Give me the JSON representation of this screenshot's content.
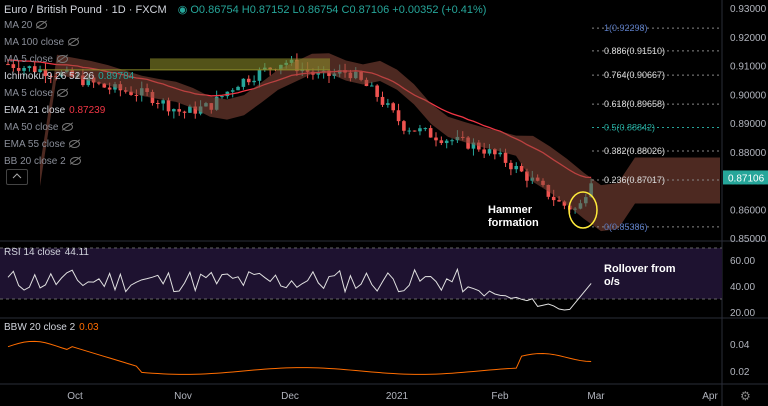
{
  "header": {
    "symbol": "Euro / British Pound",
    "interval": "1D",
    "exchange": "FXCM",
    "open": "O0.86754",
    "high": "H0.87152",
    "low": "L0.86754",
    "close": "C0.87106",
    "change": "+0.00352 (+0.41%)"
  },
  "indicators": [
    {
      "label": "MA 20",
      "value": "",
      "hidden": true
    },
    {
      "label": "MA 100 close",
      "value": "",
      "hidden": true
    },
    {
      "label": "MA 5 close",
      "value": "",
      "hidden": true
    },
    {
      "label": "Ichimoku 9 26 52 26",
      "value": "0.89784",
      "hidden": false
    },
    {
      "label": "MA 5 close",
      "value": "",
      "hidden": true
    },
    {
      "label": "EMA 21 close",
      "value": "0.87239",
      "hidden": false
    },
    {
      "label": "MA 50 close",
      "value": "",
      "hidden": true
    },
    {
      "label": "EMA 55 close",
      "value": "",
      "hidden": true
    },
    {
      "label": "BB 20 close 2",
      "value": "",
      "hidden": true
    }
  ],
  "price_axis": [
    "0.93000",
    "0.92000",
    "0.91000",
    "0.90000",
    "0.89000",
    "0.88000",
    "0.87000",
    "0.86000",
    "0.85000"
  ],
  "last_price": "0.87106",
  "fib_levels": [
    {
      "label": "1(0.92298)",
      "value": 0.92298
    },
    {
      "label": "0.886(0.91510)",
      "value": 0.9151
    },
    {
      "label": "0.764(0.90667)",
      "value": 0.90667
    },
    {
      "label": "0.618(0.89658)",
      "value": 0.89658
    },
    {
      "label": "0.5(0.88842)",
      "value": 0.88842
    },
    {
      "label": "0.382(0.88026)",
      "value": 0.88026
    },
    {
      "label": "0.236(0.87017)",
      "value": 0.87017
    },
    {
      "label": "0(0.85386)",
      "value": 0.85386
    }
  ],
  "annotations": {
    "hammer": "Hammer\nformation",
    "rollover": "Rollover from\no/s"
  },
  "rsi": {
    "label": "RSI 14 close",
    "value": "44.11",
    "axis": [
      "60.00",
      "40.00",
      "20.00"
    ]
  },
  "bbw": {
    "label": "BBW 20 close 2",
    "value": "0.03",
    "axis": [
      "0.04",
      "0.02"
    ]
  },
  "time_axis": [
    "Oct",
    "Nov",
    "Dec",
    "2021",
    "Feb",
    "Mar",
    "Apr"
  ],
  "colors": {
    "up": "#26a69a",
    "down": "#ef5350",
    "ema": "#f23645",
    "cloud_bull": "#8a8a2a",
    "cloud_bear": "#8c4a3c",
    "rsi": "#e0e0e0",
    "rsi_bg": "#1e1230",
    "bbw": "#ff6d00",
    "fib": "#5a7bc4"
  }
}
